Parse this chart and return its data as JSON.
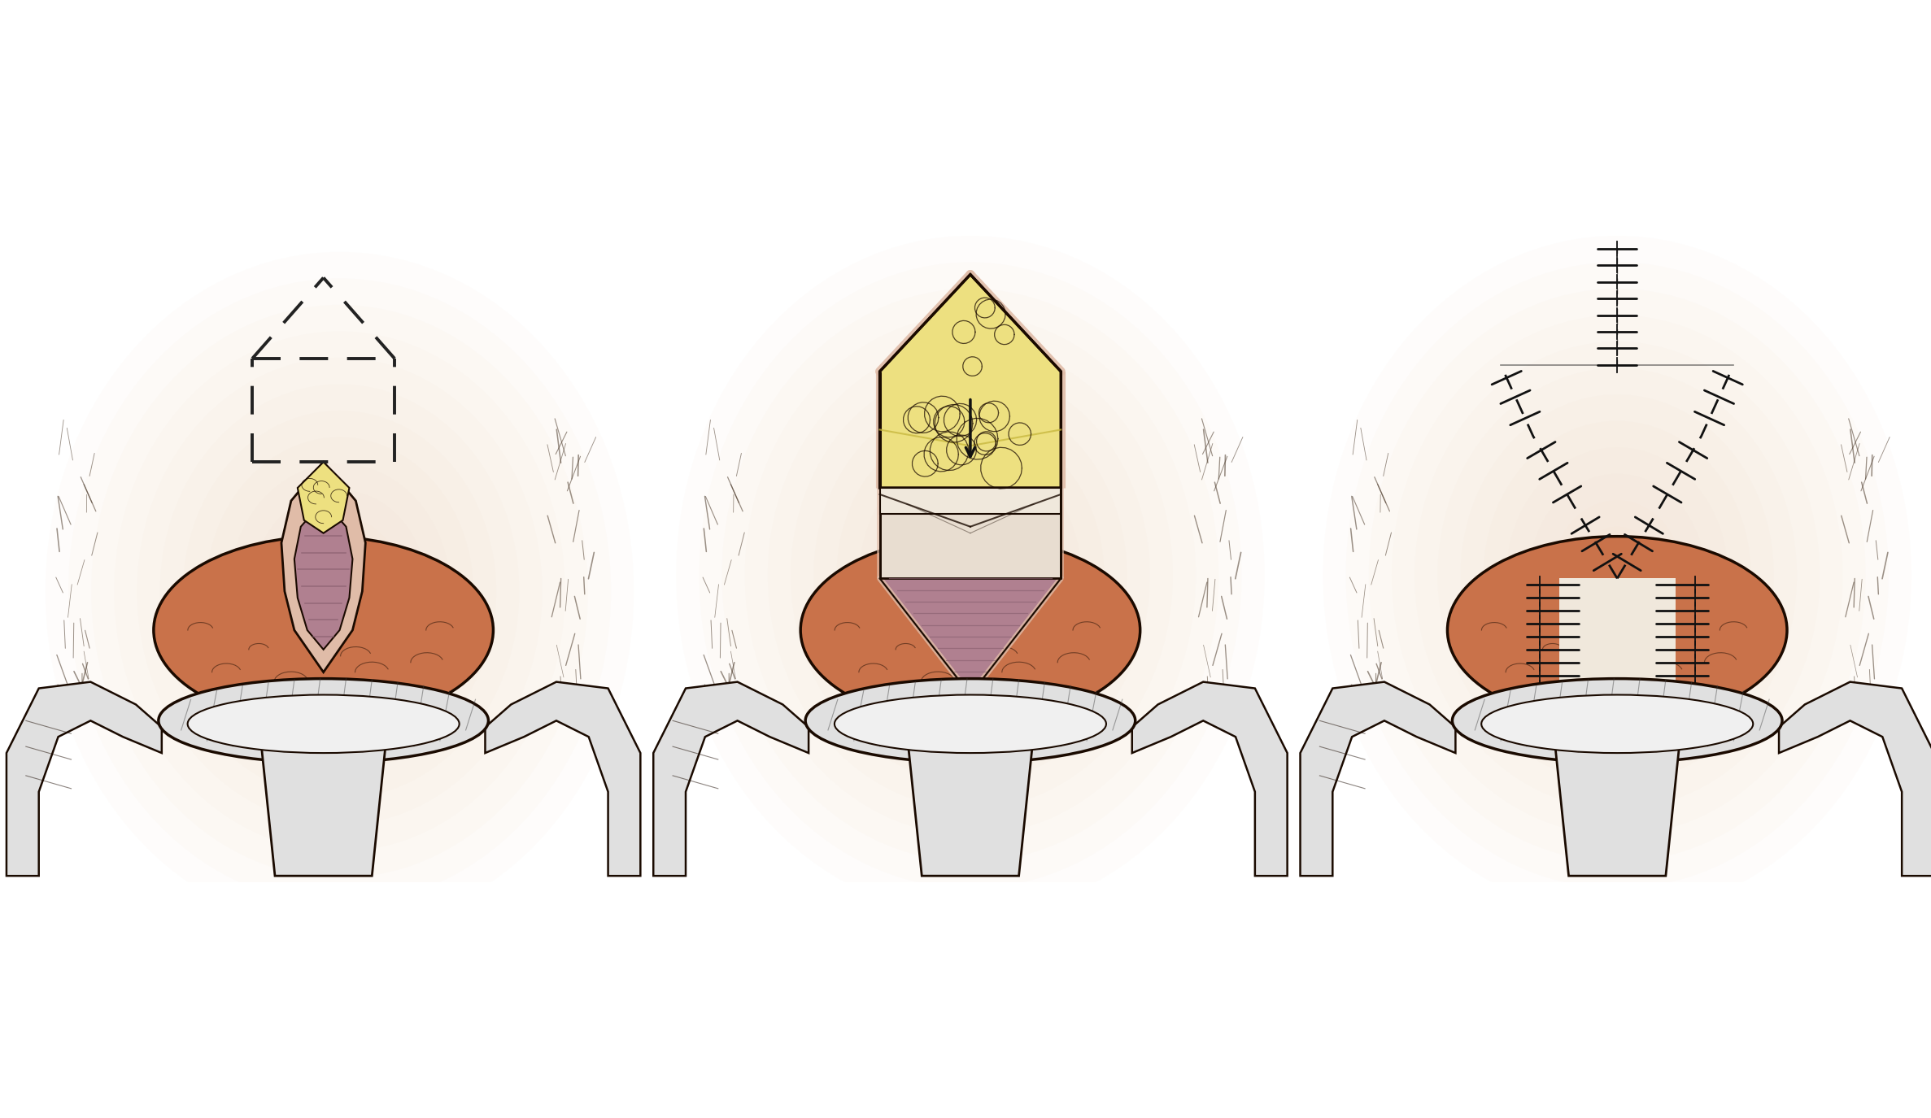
{
  "bg_color": "#ffffff",
  "panel_bg": "#f5d8c0",
  "skin_color": "#c9724a",
  "skin_dark": "#b8613a",
  "fat_color": "#ede080",
  "fat_border": "#c8b840",
  "muscle_color": "#b08090",
  "muscle_dark": "#8a6070",
  "flap_skin": "#f0e8dc",
  "flap_skin2": "#e8ddd0",
  "outline_color": "#1a0a00",
  "speculum_color": "#e0e0e0",
  "speculum_light": "#f0f0f0",
  "speculum_outline": "#404040",
  "speculum_rim": "#cccccc",
  "dash_color": "#222222",
  "stitch_color": "#111111",
  "arrow_color": "#111111",
  "pink_skin": "#e0bca8",
  "pink_edge": "#c8a090",
  "hair_color": "#4a3828",
  "bg_skin": "#f2c8a8",
  "figsize": [
    23.74,
    13.75
  ],
  "dpi": 100
}
